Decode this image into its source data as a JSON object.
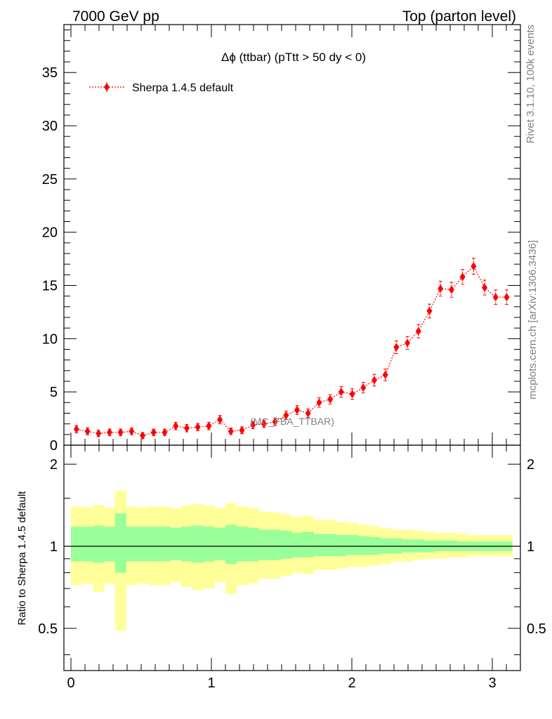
{
  "header": {
    "left": "7000 GeV pp",
    "right": "Top (parton level)"
  },
  "side_labels": {
    "rivet": "Rivet 3.1.10,  100k events",
    "mcplots": "mcplots.cern.ch [arXiv:1306.3436]"
  },
  "ratio_ylabel": "Ratio to Sherpa 1.4.5 default",
  "watermark": "(MC_FBA_TTBAR)",
  "chart_data": [
    {
      "type": "line",
      "title": "Δϕ (ttbar) (pTtt > 50 dy < 0)",
      "ylim": [
        0,
        39.5
      ],
      "xlim": [
        -0.05,
        3.2
      ],
      "yticks": [
        0,
        5,
        10,
        15,
        20,
        25,
        30,
        35
      ],
      "ytick_labels": [
        "0",
        "5",
        "10",
        "15",
        "20",
        "25",
        "30",
        "35"
      ],
      "series": [
        {
          "name": "Sherpa 1.4.5 default",
          "color": "#ff0000",
          "marker": "diamond",
          "line_style": "dotted",
          "x": [
            0.0393,
            0.1178,
            0.1963,
            0.2749,
            0.3534,
            0.432,
            0.5105,
            0.589,
            0.6676,
            0.7461,
            0.8247,
            0.9032,
            0.9817,
            1.0603,
            1.1388,
            1.2174,
            1.2959,
            1.3744,
            1.453,
            1.5315,
            1.6101,
            1.6886,
            1.7671,
            1.8457,
            1.9242,
            2.0028,
            2.0813,
            2.1598,
            2.2384,
            2.3169,
            2.3955,
            2.474,
            2.5525,
            2.6311,
            2.7096,
            2.7882,
            2.8667,
            2.9452,
            3.0238,
            3.1023
          ],
          "y": [
            1.5,
            1.3,
            1.1,
            1.2,
            1.2,
            1.3,
            0.9,
            1.2,
            1.2,
            1.8,
            1.6,
            1.7,
            1.8,
            2.4,
            1.3,
            1.4,
            1.9,
            2.0,
            2.2,
            2.8,
            3.3,
            3.0,
            4.0,
            4.3,
            5.0,
            4.8,
            5.4,
            6.1,
            6.6,
            9.2,
            9.6,
            10.7,
            12.6,
            14.7,
            14.6,
            15.8,
            16.8,
            14.8,
            13.9,
            13.9
          ],
          "y_err": [
            0.35,
            0.32,
            0.3,
            0.3,
            0.3,
            0.32,
            0.28,
            0.3,
            0.3,
            0.35,
            0.35,
            0.35,
            0.35,
            0.4,
            0.3,
            0.32,
            0.35,
            0.35,
            0.35,
            0.4,
            0.42,
            0.4,
            0.45,
            0.45,
            0.5,
            0.5,
            0.5,
            0.55,
            0.55,
            0.6,
            0.6,
            0.62,
            0.65,
            0.7,
            0.7,
            0.7,
            0.75,
            0.7,
            0.68,
            0.68
          ]
        }
      ]
    },
    {
      "type": "area",
      "ylabel": "Ratio to Sherpa 1.4.5 default",
      "ylim": [
        0.35,
        2.35
      ],
      "xlim": [
        -0.05,
        3.2
      ],
      "xticks": [
        0,
        1,
        2,
        3
      ],
      "xtick_labels": [
        "0",
        "1",
        "2",
        "3"
      ],
      "yticks": [
        0.5,
        1,
        2
      ],
      "ytick_labels": [
        "0.5",
        "1",
        "2"
      ],
      "bin_edges": [
        0.0,
        0.0785,
        0.1571,
        0.2356,
        0.3142,
        0.3927,
        0.4712,
        0.5498,
        0.6283,
        0.7069,
        0.7854,
        0.8639,
        0.9425,
        1.021,
        1.0996,
        1.1781,
        1.2566,
        1.3352,
        1.4137,
        1.4923,
        1.5708,
        1.6493,
        1.7279,
        1.8064,
        1.885,
        1.9635,
        2.042,
        2.1206,
        2.1991,
        2.2777,
        2.3562,
        2.4347,
        2.5133,
        2.5918,
        2.6704,
        2.7489,
        2.8274,
        2.906,
        2.9845,
        3.0631,
        3.1416
      ],
      "reference_line": 1,
      "bands": [
        {
          "name": "",
          "color": "#ffff99",
          "low": [
            0.72,
            0.73,
            0.68,
            0.73,
            0.49,
            0.72,
            0.73,
            0.72,
            0.72,
            0.74,
            0.71,
            0.69,
            0.7,
            0.74,
            0.67,
            0.72,
            0.73,
            0.76,
            0.76,
            0.78,
            0.8,
            0.79,
            0.82,
            0.82,
            0.83,
            0.84,
            0.84,
            0.85,
            0.86,
            0.88,
            0.88,
            0.89,
            0.9,
            0.9,
            0.91,
            0.91,
            0.92,
            0.92,
            0.92,
            0.92
          ],
          "high": [
            1.4,
            1.39,
            1.42,
            1.39,
            1.6,
            1.4,
            1.39,
            1.4,
            1.4,
            1.38,
            1.41,
            1.43,
            1.41,
            1.38,
            1.44,
            1.4,
            1.38,
            1.34,
            1.33,
            1.31,
            1.28,
            1.29,
            1.25,
            1.25,
            1.23,
            1.22,
            1.2,
            1.19,
            1.17,
            1.15,
            1.15,
            1.14,
            1.13,
            1.12,
            1.12,
            1.11,
            1.1,
            1.1,
            1.1,
            1.1
          ]
        },
        {
          "name": "",
          "color": "#99ff99",
          "low": [
            0.88,
            0.88,
            0.87,
            0.88,
            0.8,
            0.88,
            0.88,
            0.88,
            0.88,
            0.89,
            0.88,
            0.87,
            0.88,
            0.89,
            0.86,
            0.88,
            0.88,
            0.89,
            0.89,
            0.9,
            0.91,
            0.91,
            0.92,
            0.92,
            0.92,
            0.93,
            0.93,
            0.93,
            0.94,
            0.94,
            0.95,
            0.95,
            0.95,
            0.96,
            0.96,
            0.96,
            0.96,
            0.96,
            0.96,
            0.96
          ],
          "high": [
            1.18,
            1.18,
            1.19,
            1.18,
            1.32,
            1.18,
            1.18,
            1.18,
            1.18,
            1.17,
            1.18,
            1.19,
            1.18,
            1.17,
            1.2,
            1.18,
            1.17,
            1.15,
            1.15,
            1.14,
            1.12,
            1.13,
            1.11,
            1.11,
            1.1,
            1.1,
            1.09,
            1.08,
            1.07,
            1.07,
            1.06,
            1.06,
            1.05,
            1.05,
            1.05,
            1.04,
            1.04,
            1.04,
            1.04,
            1.04
          ]
        }
      ]
    }
  ]
}
